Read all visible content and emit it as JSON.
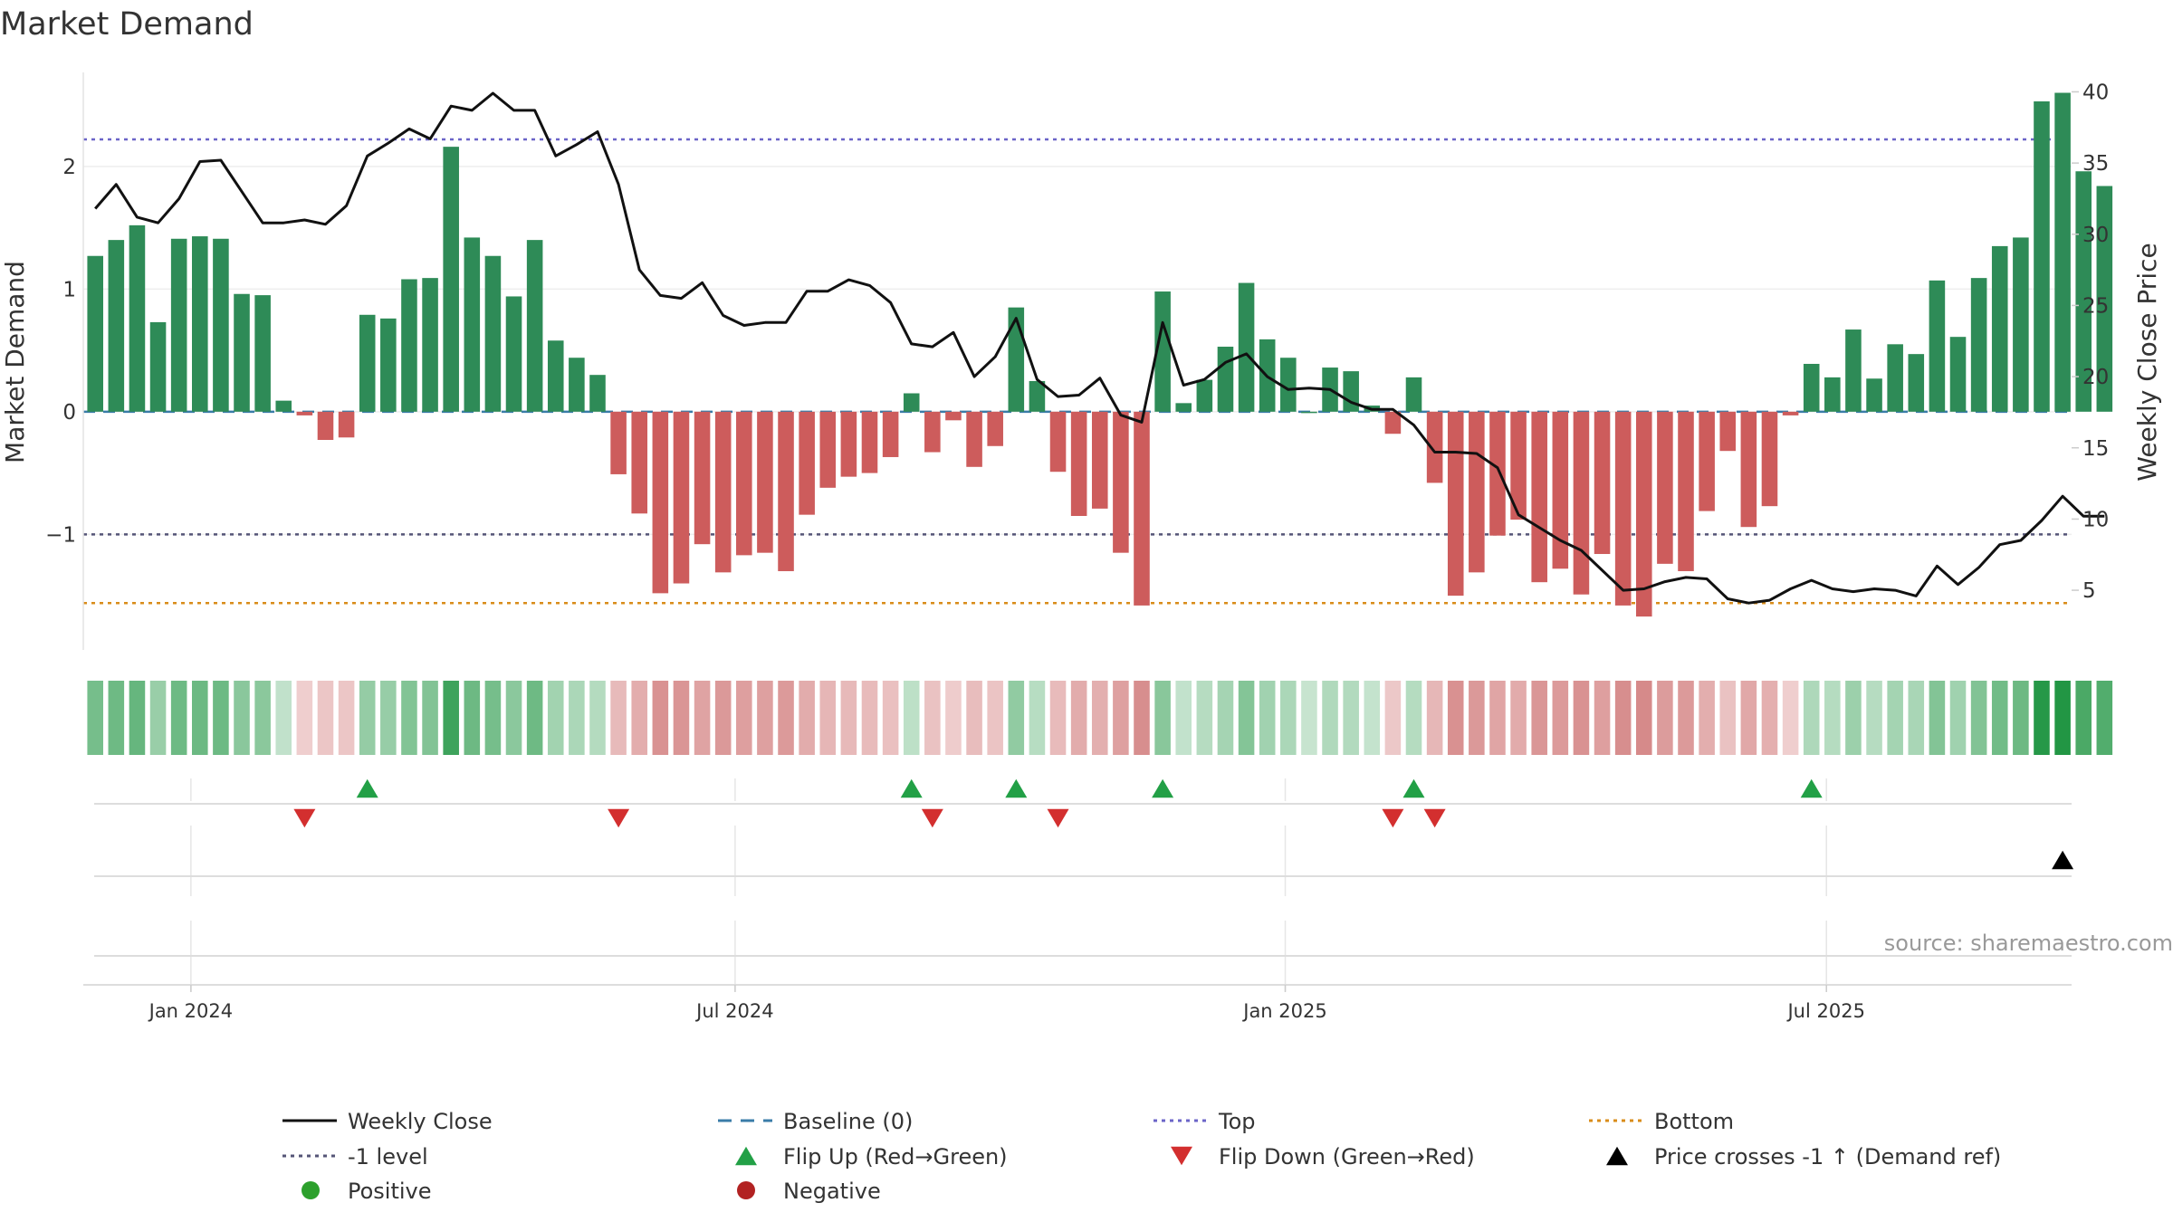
{
  "chart_data": {
    "type": "bar",
    "title": "Market Demand",
    "ylabel": "Market Demand",
    "y2label": "Weekly Close Price",
    "ylim": [
      -1.92,
      2.84
    ],
    "y2lim": [
      1,
      42
    ],
    "yticks": [
      2,
      1,
      0,
      -1
    ],
    "ytick_labels": [
      "2",
      "1",
      "0",
      "−1"
    ],
    "y2ticks": [
      40,
      35,
      30,
      25,
      20,
      15,
      10,
      5
    ],
    "x_axis_type": "date",
    "xlim": [
      "2023-11-26",
      "2025-09-21"
    ],
    "x_ticks": [
      {
        "date": "2024-01-01",
        "label": "Jan 2024"
      },
      {
        "date": "2024-07-01",
        "label": "Jul 2024"
      },
      {
        "date": "2025-01-01",
        "label": "Jan 2025"
      },
      {
        "date": "2025-07-01",
        "label": "Jul 2025"
      }
    ],
    "grid": true,
    "legend_position": "bottom",
    "source": "source: sharemaestro.com",
    "x_start": "2023-11-30",
    "x_step_days": 7,
    "demand": [
      1.27,
      1.4,
      1.52,
      0.73,
      1.41,
      1.43,
      1.41,
      0.96,
      0.95,
      0.09,
      -0.03,
      -0.23,
      -0.21,
      0.79,
      0.76,
      1.08,
      1.09,
      2.16,
      1.42,
      1.27,
      0.94,
      1.4,
      0.58,
      0.44,
      0.3,
      -0.51,
      -0.83,
      -1.48,
      -1.4,
      -1.08,
      -1.31,
      -1.17,
      -1.15,
      -1.3,
      -0.84,
      -0.62,
      -0.53,
      -0.5,
      -0.37,
      0.15,
      -0.33,
      -0.07,
      -0.45,
      -0.28,
      0.85,
      0.25,
      -0.49,
      -0.85,
      -0.79,
      -1.15,
      -1.58,
      0.98,
      0.07,
      0.26,
      0.53,
      1.05,
      0.59,
      0.44,
      0.0,
      0.36,
      0.33,
      0.05,
      -0.18,
      0.28,
      -0.58,
      -1.5,
      -1.31,
      -1.01,
      -0.88,
      -1.39,
      -1.28,
      -1.49,
      -1.16,
      -1.58,
      -1.67,
      -1.24,
      -1.3,
      -0.81,
      -0.32,
      -0.94,
      -0.77,
      -0.03,
      0.39,
      0.28,
      0.67,
      0.27,
      0.55,
      0.47,
      1.07,
      0.61,
      1.09,
      1.35,
      1.42,
      2.53,
      2.6,
      1.96,
      1.84
    ],
    "price": [
      31.8,
      33.5,
      31.2,
      30.8,
      32.5,
      35.1,
      35.2,
      33.0,
      30.8,
      30.8,
      31.0,
      30.7,
      32.0,
      35.5,
      36.4,
      37.4,
      36.7,
      39.0,
      38.7,
      39.9,
      38.7,
      38.7,
      35.5,
      36.3,
      37.2,
      33.5,
      27.5,
      25.7,
      25.5,
      26.6,
      24.3,
      23.6,
      23.8,
      23.8,
      26.0,
      26.0,
      26.8,
      26.4,
      25.2,
      22.3,
      22.1,
      23.1,
      20.0,
      21.4,
      24.1,
      19.8,
      18.6,
      18.7,
      19.9,
      17.3,
      16.8,
      23.8,
      19.4,
      19.8,
      21.0,
      21.6,
      20.0,
      19.1,
      19.2,
      19.1,
      18.2,
      17.7,
      17.7,
      16.6,
      14.7,
      14.7,
      14.6,
      13.6,
      10.3,
      9.4,
      8.5,
      7.8,
      6.4,
      5.0,
      5.1,
      5.6,
      5.9,
      5.8,
      4.4,
      4.1,
      4.3,
      5.1,
      5.7,
      5.1,
      4.9,
      5.1,
      5.0,
      4.6,
      6.7,
      5.4,
      6.6,
      8.2,
      8.5,
      9.9,
      11.6,
      10.2,
      10.2
    ],
    "levels": [
      {
        "name": "Top",
        "value": 2.22,
        "color": "#6b64c8"
      },
      {
        "name": "-1 level",
        "value": -1.0,
        "color": "#555577"
      },
      {
        "name": "Bottom",
        "value": -1.56,
        "color": "#d98c1a"
      }
    ],
    "flip_up_weeks": [
      13,
      39,
      44,
      51,
      63,
      82
    ],
    "flip_down_weeks": [
      10,
      25,
      40,
      46,
      62,
      64
    ],
    "price_cross_weeks": [
      94
    ],
    "colors": {
      "positive": "#2e8b57",
      "negative": "#cd5c5c",
      "price_line": "#111111",
      "baseline": "#3a7ca8",
      "flip_up": "#22a046",
      "flip_down": "#d32f2f",
      "cross": "#000000",
      "dot_positive": "#2ca02c",
      "dot_negative": "#b22222"
    },
    "legend": [
      {
        "label": "Weekly Close",
        "symbol": "solid-line",
        "color": "#111111"
      },
      {
        "label": "Baseline (0)",
        "symbol": "dashed-line",
        "color": "#3a7ca8"
      },
      {
        "label": "Top",
        "symbol": "dotted-line",
        "color": "#6b64c8"
      },
      {
        "label": "Bottom",
        "symbol": "dotted-line",
        "color": "#d98c1a"
      },
      {
        "label": "-1 level",
        "symbol": "dotted-line",
        "color": "#555577"
      },
      {
        "label": "Flip Up (Red→Green)",
        "symbol": "triangle-up",
        "color": "#22a046"
      },
      {
        "label": "Flip Down (Green→Red)",
        "symbol": "triangle-down",
        "color": "#d32f2f"
      },
      {
        "label": "Price crosses -1 ↑ (Demand ref)",
        "symbol": "triangle-up",
        "color": "#000000"
      },
      {
        "label": "Positive",
        "symbol": "dot",
        "color": "#2ca02c"
      },
      {
        "label": "Negative",
        "symbol": "dot",
        "color": "#b22222"
      }
    ]
  }
}
